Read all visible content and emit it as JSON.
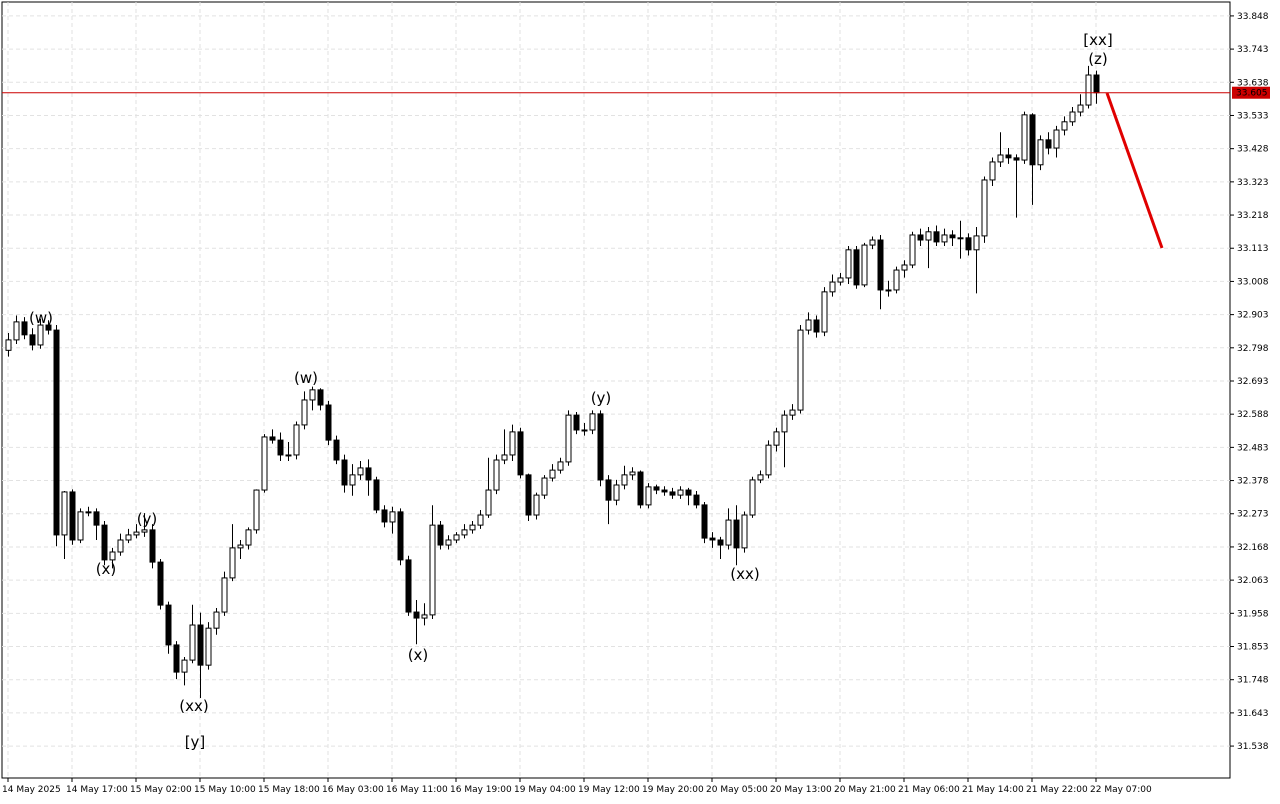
{
  "chart_data": {
    "type": "candlestick",
    "grid": true,
    "up_color": "#ffffff",
    "down_color": "#000000",
    "ylim": [
      31.437,
      33.892
    ],
    "yticks": [
      33.848,
      33.743,
      33.638,
      33.533,
      33.428,
      33.323,
      33.218,
      33.113,
      33.008,
      32.903,
      32.798,
      32.693,
      32.588,
      32.483,
      32.378,
      32.273,
      32.168,
      32.063,
      31.958,
      31.853,
      31.748,
      31.643,
      31.538
    ],
    "xticks": [
      {
        "value": 0,
        "label": "14 May 2025"
      },
      {
        "value": 8,
        "label": "14 May 17:00"
      },
      {
        "value": 16,
        "label": "15 May 02:00"
      },
      {
        "value": 24,
        "label": "15 May 10:00"
      },
      {
        "value": 32,
        "label": "15 May 18:00"
      },
      {
        "value": 40,
        "label": "16 May 03:00"
      },
      {
        "value": 48,
        "label": "16 May 11:00"
      },
      {
        "value": 56,
        "label": "16 May 19:00"
      },
      {
        "value": 64,
        "label": "19 May 04:00"
      },
      {
        "value": 72,
        "label": "19 May 12:00"
      },
      {
        "value": 80,
        "label": "19 May 20:00"
      },
      {
        "value": 88,
        "label": "20 May 05:00"
      },
      {
        "value": 96,
        "label": "20 May 13:00"
      },
      {
        "value": 104,
        "label": "20 May 21:00"
      },
      {
        "value": 112,
        "label": "21 May 06:00"
      },
      {
        "value": 120,
        "label": "21 May 14:00"
      },
      {
        "value": 128,
        "label": "21 May 22:00"
      },
      {
        "value": 136,
        "label": "22 May 07:00"
      }
    ],
    "current_price": 33.605,
    "current_price_color": "#cc0000",
    "annotations": [
      {
        "text": "(w)",
        "color": "#2323c8"
      },
      {
        "text": "(x)",
        "color": "#2323c8"
      },
      {
        "text": "(y)",
        "color": "#2323c8"
      },
      {
        "text": "(xx)",
        "color": "#2323c8"
      },
      {
        "text": "[y]",
        "color": "#3cbf3c"
      },
      {
        "text": "(w)",
        "color": "#2323c8"
      },
      {
        "text": "(x)",
        "color": "#2323c8"
      },
      {
        "text": "(y)",
        "color": "#2323c8"
      },
      {
        "text": "(xx)",
        "color": "#2323c8"
      },
      {
        "text": "[xx]",
        "color": "#3cbf3c"
      },
      {
        "text": "(z)",
        "color": "#2323c8"
      }
    ],
    "open": [
      32.79,
      32.823,
      32.88,
      32.839,
      32.807,
      32.87,
      32.854,
      32.206,
      32.342,
      32.19,
      32.279,
      32.279,
      32.237,
      32.127,
      32.152,
      32.19,
      32.206,
      32.215,
      32.222,
      32.12,
      31.984,
      31.858,
      31.772,
      31.81,
      31.921,
      31.794,
      31.911,
      31.962,
      32.07,
      32.165,
      32.174,
      32.222,
      32.348,
      32.516,
      32.506,
      32.459,
      32.459,
      32.554,
      32.633,
      32.665,
      32.617,
      32.506,
      32.443,
      32.364,
      32.396,
      32.418,
      32.38,
      32.285,
      32.247,
      32.279,
      32.127,
      31.962,
      31.943,
      31.953,
      32.237,
      32.174,
      32.19,
      32.206,
      32.222,
      32.237,
      32.269,
      32.348,
      32.443,
      32.459,
      32.532,
      32.396,
      32.269,
      32.332,
      32.386,
      32.411,
      32.437,
      32.585,
      32.538,
      32.538,
      32.589,
      32.38,
      32.316,
      32.364,
      32.396,
      32.405,
      32.301,
      32.358,
      32.348,
      32.342,
      32.332,
      32.348,
      32.332,
      32.301,
      32.196,
      32.19,
      32.174,
      32.253,
      32.165,
      32.269,
      32.38,
      32.396,
      32.49,
      32.532,
      32.585,
      32.601,
      32.854,
      32.886,
      32.848,
      32.975,
      33.006,
      33.019,
      33.108,
      32.997,
      33.123,
      33.139,
      32.981,
      32.981,
      33.044,
      33.06,
      33.155,
      33.139,
      33.165,
      33.133,
      33.155,
      33.146,
      33.146,
      33.108,
      33.152,
      33.329,
      33.386,
      33.408,
      33.399,
      33.392,
      33.535,
      33.377,
      33.456,
      33.43,
      33.487,
      33.513,
      33.544,
      33.566,
      33.661
    ],
    "high": [
      32.845,
      32.9,
      32.895,
      32.86,
      32.89,
      32.885,
      32.87,
      32.345,
      32.35,
      32.29,
      32.295,
      32.29,
      32.25,
      32.165,
      32.21,
      32.225,
      32.24,
      32.275,
      32.24,
      32.13,
      31.995,
      31.87,
      31.82,
      31.985,
      31.96,
      31.93,
      31.975,
      32.09,
      32.24,
      32.19,
      32.23,
      32.35,
      32.525,
      32.54,
      32.53,
      32.5,
      32.565,
      32.66,
      32.675,
      32.67,
      32.63,
      32.52,
      32.46,
      32.43,
      32.44,
      32.445,
      32.39,
      32.3,
      32.295,
      32.29,
      32.14,
      32.0,
      31.99,
      32.3,
      32.25,
      32.205,
      32.215,
      32.24,
      32.25,
      32.285,
      32.45,
      32.46,
      32.54,
      32.555,
      32.545,
      32.4,
      32.34,
      32.395,
      32.43,
      32.45,
      32.6,
      32.595,
      32.56,
      32.6,
      32.6,
      32.395,
      32.38,
      32.425,
      32.42,
      32.41,
      32.37,
      32.365,
      32.36,
      32.355,
      32.36,
      32.355,
      32.345,
      32.31,
      32.215,
      32.2,
      32.29,
      32.3,
      32.28,
      32.39,
      32.41,
      32.505,
      32.545,
      32.6,
      32.62,
      32.87,
      32.91,
      32.9,
      32.99,
      33.03,
      33.035,
      33.12,
      33.12,
      33.13,
      33.15,
      33.155,
      33.01,
      33.055,
      33.075,
      33.165,
      33.175,
      33.18,
      33.185,
      33.175,
      33.17,
      33.2,
      33.16,
      33.18,
      33.34,
      33.4,
      33.48,
      33.43,
      33.41,
      33.545,
      33.54,
      33.47,
      33.48,
      33.5,
      33.53,
      33.56,
      33.6,
      33.69,
      33.675
    ],
    "low": [
      32.77,
      32.81,
      32.825,
      32.79,
      32.795,
      32.84,
      32.17,
      32.13,
      32.175,
      32.18,
      32.265,
      32.19,
      32.11,
      32.1,
      32.14,
      32.18,
      32.195,
      32.2,
      32.1,
      31.97,
      31.83,
      31.75,
      31.73,
      31.8,
      31.69,
      31.78,
      31.89,
      31.95,
      32.06,
      32.13,
      32.16,
      32.21,
      32.34,
      32.495,
      32.44,
      32.44,
      32.445,
      32.54,
      32.6,
      32.6,
      32.49,
      32.43,
      32.34,
      32.33,
      32.38,
      32.33,
      32.275,
      32.23,
      32.21,
      32.11,
      31.95,
      31.86,
      31.92,
      31.94,
      32.16,
      32.16,
      32.18,
      32.195,
      32.21,
      32.225,
      32.26,
      32.335,
      32.43,
      32.44,
      32.385,
      32.25,
      32.255,
      32.32,
      32.375,
      32.4,
      32.425,
      32.525,
      32.52,
      32.525,
      32.36,
      32.24,
      32.3,
      32.35,
      32.38,
      32.29,
      32.29,
      32.335,
      32.33,
      32.32,
      32.32,
      32.3,
      32.29,
      32.18,
      32.165,
      32.13,
      32.16,
      32.11,
      32.15,
      32.26,
      32.37,
      32.385,
      32.47,
      32.42,
      32.57,
      32.59,
      32.84,
      32.83,
      32.835,
      32.96,
      32.995,
      33.0,
      32.985,
      32.99,
      33.11,
      32.92,
      32.96,
      32.97,
      33.02,
      33.05,
      33.12,
      33.05,
      33.12,
      33.12,
      33.12,
      33.08,
      33.09,
      32.97,
      33.13,
      33.31,
      33.37,
      33.38,
      33.21,
      33.38,
      33.25,
      33.36,
      33.41,
      33.4,
      33.47,
      33.5,
      33.53,
      33.555,
      33.57
    ],
    "close": [
      32.823,
      32.88,
      32.839,
      32.807,
      32.87,
      32.854,
      32.206,
      32.342,
      32.19,
      32.279,
      32.279,
      32.237,
      32.127,
      32.152,
      32.19,
      32.206,
      32.215,
      32.222,
      32.12,
      31.984,
      31.858,
      31.772,
      31.81,
      31.921,
      31.794,
      31.911,
      31.962,
      32.07,
      32.165,
      32.174,
      32.222,
      32.348,
      32.516,
      32.506,
      32.459,
      32.459,
      32.554,
      32.633,
      32.665,
      32.617,
      32.506,
      32.443,
      32.364,
      32.396,
      32.418,
      32.38,
      32.285,
      32.247,
      32.279,
      32.127,
      31.962,
      31.943,
      31.953,
      32.237,
      32.174,
      32.19,
      32.206,
      32.222,
      32.237,
      32.269,
      32.348,
      32.443,
      32.459,
      32.532,
      32.396,
      32.269,
      32.332,
      32.386,
      32.411,
      32.437,
      32.585,
      32.538,
      32.538,
      32.589,
      32.38,
      32.316,
      32.364,
      32.396,
      32.405,
      32.301,
      32.358,
      32.348,
      32.342,
      32.332,
      32.348,
      32.332,
      32.301,
      32.196,
      32.19,
      32.174,
      32.253,
      32.165,
      32.269,
      32.38,
      32.396,
      32.49,
      32.532,
      32.585,
      32.601,
      32.854,
      32.886,
      32.848,
      32.975,
      33.006,
      33.019,
      33.108,
      32.997,
      33.123,
      33.139,
      32.981,
      32.981,
      33.044,
      33.06,
      33.155,
      33.139,
      33.165,
      33.133,
      33.155,
      33.146,
      33.146,
      33.108,
      33.152,
      33.329,
      33.386,
      33.408,
      33.399,
      33.392,
      33.535,
      33.377,
      33.456,
      33.43,
      33.487,
      33.513,
      33.544,
      33.566,
      33.661,
      33.605
    ]
  }
}
